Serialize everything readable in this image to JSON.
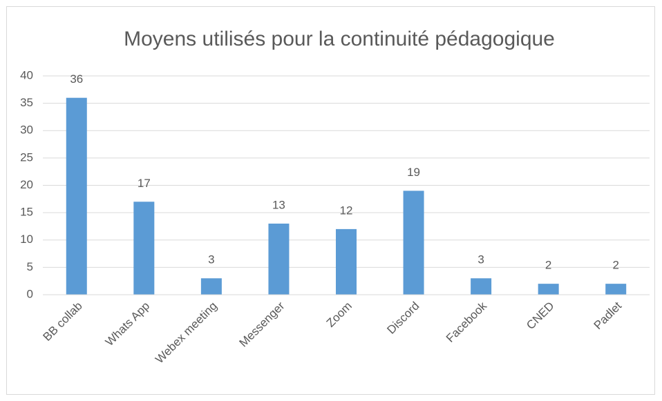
{
  "chart_data": {
    "type": "bar",
    "title": "Moyens utilisés pour la continuité pédagogique",
    "categories": [
      "BB collab",
      "Whats App",
      "Webex meeting",
      "Messenger",
      "Zoom",
      "Discord",
      "Facebook",
      "CNED",
      "Padlet"
    ],
    "values": [
      36,
      17,
      3,
      13,
      12,
      19,
      3,
      2,
      2
    ],
    "color": "#5b9bd5",
    "ylim": [
      0,
      40
    ],
    "yticks": [
      0,
      5,
      10,
      15,
      20,
      25,
      30,
      35,
      40
    ],
    "grid": true
  }
}
